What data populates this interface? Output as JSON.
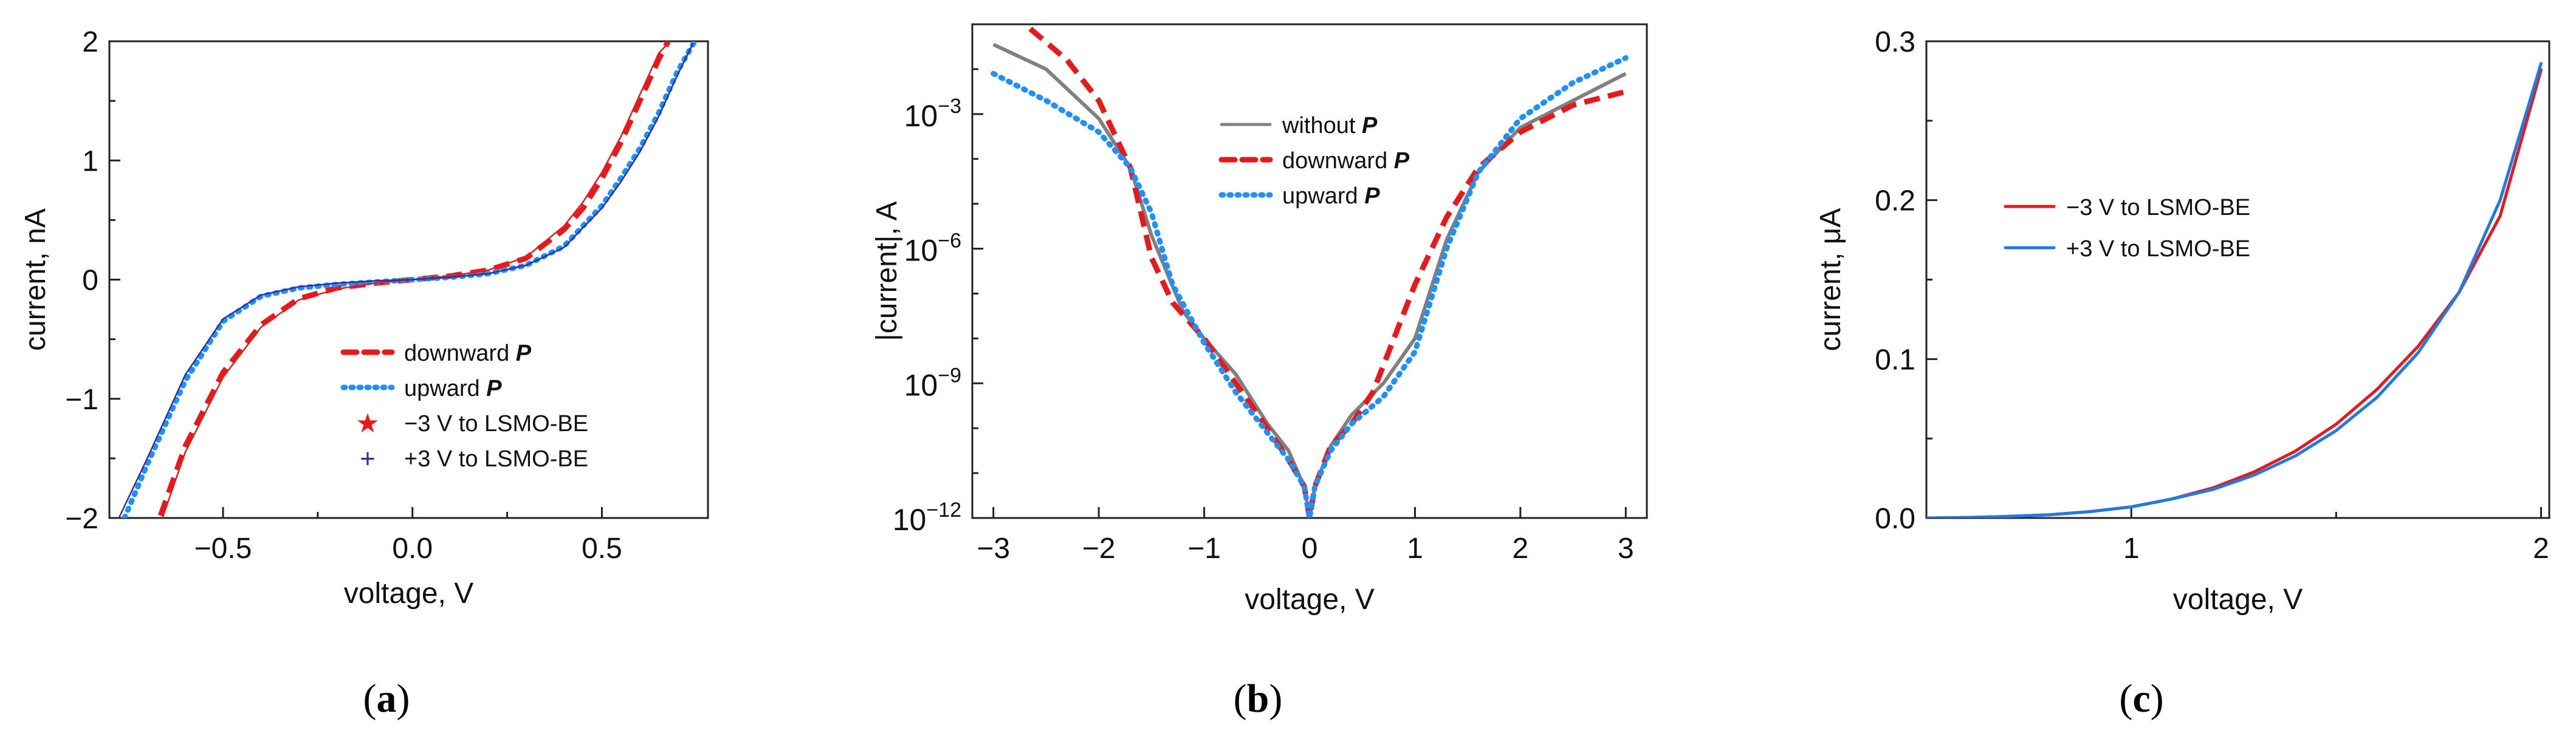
{
  "figure": {
    "panels": [
      {
        "caption_open": "(",
        "caption_letter": "a",
        "caption_close": ")"
      },
      {
        "caption_open": "(",
        "caption_letter": "b",
        "caption_close": ")"
      },
      {
        "caption_open": "(",
        "caption_letter": "c",
        "caption_close": ")"
      }
    ]
  },
  "colors": {
    "red": "#e8191b",
    "blue_dotted": "#1e90ff",
    "gray": "#808080",
    "navy": "#2f2fa0",
    "blue_solid": "#1e7be6"
  },
  "chart_data": [
    {
      "type": "line",
      "title": "",
      "xlabel": "voltage, V",
      "ylabel": "current, nA",
      "xlim": [
        -0.8,
        0.78
      ],
      "ylim": [
        -2,
        2
      ],
      "xticks": [
        -0.5,
        0.0,
        0.5
      ],
      "xtick_labels": [
        "−0.5",
        "0.0",
        "0.5"
      ],
      "yticks": [
        -2,
        -1,
        0,
        1,
        2
      ],
      "ytick_labels": [
        "−2",
        "−1",
        "0",
        "1",
        "2"
      ],
      "legend": {
        "placement": "lower-right",
        "entries": [
          {
            "label": "downward ",
            "italic_suffix": "P",
            "style": "dashed",
            "color": "#e8191b"
          },
          {
            "label": "upward ",
            "italic_suffix": "P",
            "style": "dotted",
            "color": "#1e90ff"
          },
          {
            "label": "−3 V to LSMO-BE",
            "italic_suffix": "",
            "marker": "★",
            "color": "#e8191b"
          },
          {
            "label": "+3 V to LSMO-BE",
            "italic_suffix": "",
            "marker": "+",
            "color": "#2f2fa0"
          }
        ]
      },
      "series": [
        {
          "name": "downward P",
          "style": "dashed",
          "color": "#e8191b",
          "x": [
            -0.665,
            -0.6,
            -0.5,
            -0.4,
            -0.3,
            -0.2,
            -0.1,
            0.0,
            0.1,
            0.2,
            0.3,
            0.4,
            0.45,
            0.5,
            0.55,
            0.6,
            0.65,
            0.675
          ],
          "y": [
            -1.98,
            -1.4,
            -0.78,
            -0.38,
            -0.16,
            -0.07,
            -0.03,
            0.0,
            0.03,
            0.08,
            0.18,
            0.42,
            0.6,
            0.85,
            1.15,
            1.5,
            1.85,
            2.0
          ]
        },
        {
          "name": "upward P",
          "style": "dotted",
          "color": "#1e90ff",
          "x": [
            -0.76,
            -0.7,
            -0.6,
            -0.5,
            -0.4,
            -0.3,
            -0.2,
            -0.1,
            0.0,
            0.1,
            0.2,
            0.3,
            0.4,
            0.5,
            0.55,
            0.6,
            0.65,
            0.7,
            0.745
          ],
          "y": [
            -2.0,
            -1.55,
            -0.85,
            -0.35,
            -0.14,
            -0.07,
            -0.04,
            -0.02,
            0.0,
            0.02,
            0.05,
            0.12,
            0.28,
            0.62,
            0.85,
            1.1,
            1.4,
            1.75,
            2.0
          ]
        },
        {
          "name": "−3 V to LSMO-BE",
          "style": "thin-markers",
          "color": "#e8191b",
          "x": [
            -0.66,
            -0.6,
            -0.5,
            -0.4,
            -0.3,
            -0.2,
            -0.1,
            0.0,
            0.1,
            0.2,
            0.3,
            0.4,
            0.45,
            0.5,
            0.55,
            0.6,
            0.65,
            0.68
          ],
          "y": [
            -2.0,
            -1.45,
            -0.82,
            -0.4,
            -0.17,
            -0.08,
            -0.03,
            0.0,
            0.03,
            0.08,
            0.19,
            0.45,
            0.65,
            0.9,
            1.2,
            1.55,
            1.9,
            2.0
          ]
        },
        {
          "name": "+3 V to LSMO-BE",
          "style": "thin-markers",
          "color": "#2f2fa0",
          "x": [
            -0.775,
            -0.7,
            -0.6,
            -0.5,
            -0.4,
            -0.3,
            -0.2,
            -0.1,
            0.0,
            0.1,
            0.2,
            0.3,
            0.4,
            0.5,
            0.55,
            0.6,
            0.65,
            0.7,
            0.74
          ],
          "y": [
            -2.0,
            -1.5,
            -0.8,
            -0.33,
            -0.13,
            -0.06,
            -0.03,
            -0.01,
            0.0,
            0.02,
            0.05,
            0.12,
            0.27,
            0.6,
            0.82,
            1.07,
            1.37,
            1.72,
            1.98
          ]
        }
      ]
    },
    {
      "type": "line",
      "title": "",
      "xlabel": "voltage, V",
      "ylabel": "|current|, A",
      "yscale": "log",
      "xlim": [
        -3.2,
        3.2
      ],
      "ylim_exp": [
        -12,
        -1
      ],
      "xticks": [
        -3,
        -2,
        -1,
        0,
        1,
        2,
        3
      ],
      "xtick_labels": [
        "−3",
        "−2",
        "−1",
        "0",
        "1",
        "2",
        "3"
      ],
      "yticks_exp": [
        -12,
        -9,
        -6,
        -3
      ],
      "ytick_base": "10",
      "ytick_exponents": [
        "−12",
        "−9",
        "−6",
        "−3"
      ],
      "legend": {
        "placement": "top-center",
        "entries": [
          {
            "label": "without ",
            "italic_suffix": "P",
            "style": "solid",
            "color": "#808080"
          },
          {
            "label": "downward ",
            "italic_suffix": "P",
            "style": "dashed",
            "color": "#e8191b"
          },
          {
            "label": "upward ",
            "italic_suffix": "P",
            "style": "dotted",
            "color": "#1e90ff"
          }
        ]
      },
      "series": [
        {
          "name": "without P",
          "style": "solid",
          "color": "#808080",
          "x": [
            -3.0,
            -2.5,
            -2.0,
            -1.7,
            -1.5,
            -1.2,
            -1.0,
            -0.7,
            -0.4,
            -0.2,
            -0.05,
            0.0,
            0.05,
            0.2,
            0.4,
            0.7,
            1.0,
            1.3,
            1.6,
            2.0,
            2.5,
            3.0
          ],
          "y_exp": [
            -1.45,
            -2.0,
            -3.1,
            -4.2,
            -5.7,
            -7.4,
            -8.0,
            -8.8,
            -9.9,
            -10.5,
            -11.3,
            -12.0,
            -11.3,
            -10.4,
            -9.7,
            -9.0,
            -8.0,
            -5.8,
            -4.3,
            -3.3,
            -2.7,
            -2.1
          ]
        },
        {
          "name": "downward P",
          "style": "dashed",
          "color": "#e8191b",
          "x": [
            -2.65,
            -2.3,
            -2.0,
            -1.7,
            -1.5,
            -1.3,
            -1.0,
            -0.7,
            -0.4,
            -0.2,
            -0.05,
            0.0,
            0.05,
            0.2,
            0.4,
            0.6,
            0.8,
            1.0,
            1.3,
            1.6,
            2.0,
            2.5,
            3.0
          ],
          "y_exp": [
            -1.1,
            -1.8,
            -2.7,
            -4.2,
            -6.2,
            -7.2,
            -8.0,
            -9.0,
            -10.0,
            -10.7,
            -11.3,
            -12.0,
            -11.3,
            -10.4,
            -9.9,
            -9.2,
            -8.0,
            -6.8,
            -5.3,
            -4.2,
            -3.4,
            -2.8,
            -2.5
          ]
        },
        {
          "name": "upward P",
          "style": "dotted",
          "color": "#1e90ff",
          "x": [
            -3.0,
            -2.5,
            -2.0,
            -1.7,
            -1.5,
            -1.3,
            -1.0,
            -0.7,
            -0.4,
            -0.2,
            -0.05,
            0.0,
            0.05,
            0.2,
            0.4,
            0.7,
            1.0,
            1.3,
            1.6,
            2.0,
            2.5,
            3.0
          ],
          "y_exp": [
            -2.1,
            -2.7,
            -3.4,
            -4.2,
            -5.2,
            -6.8,
            -8.1,
            -9.2,
            -10.1,
            -10.7,
            -11.3,
            -12.0,
            -11.3,
            -10.5,
            -9.9,
            -9.3,
            -8.3,
            -6.0,
            -4.3,
            -3.1,
            -2.3,
            -1.75
          ]
        }
      ]
    },
    {
      "type": "line",
      "title": "",
      "xlabel": "voltage, V",
      "ylabel": "current, μA",
      "xlim": [
        0.5,
        2.02
      ],
      "ylim": [
        0.0,
        0.3
      ],
      "xticks": [
        1,
        2
      ],
      "xtick_labels": [
        "1",
        "2"
      ],
      "minor_xticks": [
        1.5
      ],
      "yticks": [
        0.0,
        0.1,
        0.2,
        0.3
      ],
      "ytick_labels": [
        "0.0",
        "0.1",
        "0.2",
        "0.3"
      ],
      "legend": {
        "placement": "top-left",
        "entries": [
          {
            "label": "−3 V to LSMO-BE",
            "italic_suffix": "",
            "style": "solid",
            "color": "#e8191b"
          },
          {
            "label": "+3 V to LSMO-BE",
            "italic_suffix": "",
            "style": "solid",
            "color": "#1e7be6"
          }
        ]
      },
      "series": [
        {
          "name": "−3 V to LSMO-BE",
          "style": "solid",
          "color": "#e8191b",
          "x": [
            0.5,
            0.6,
            0.7,
            0.8,
            0.9,
            1.0,
            1.1,
            1.2,
            1.3,
            1.4,
            1.5,
            1.6,
            1.7,
            1.8,
            1.9,
            2.0
          ],
          "y": [
            0.0,
            0.0003,
            0.001,
            0.002,
            0.004,
            0.007,
            0.012,
            0.019,
            0.029,
            0.042,
            0.059,
            0.081,
            0.108,
            0.142,
            0.19,
            0.282
          ]
        },
        {
          "name": "+3 V to LSMO-BE",
          "style": "solid",
          "color": "#1e7be6",
          "x": [
            0.5,
            0.6,
            0.7,
            0.8,
            0.9,
            1.0,
            1.1,
            1.2,
            1.3,
            1.4,
            1.5,
            1.6,
            1.7,
            1.8,
            1.9,
            2.0
          ],
          "y": [
            0.0,
            0.0003,
            0.001,
            0.002,
            0.004,
            0.007,
            0.012,
            0.018,
            0.027,
            0.039,
            0.055,
            0.076,
            0.104,
            0.142,
            0.2,
            0.286
          ]
        }
      ]
    }
  ]
}
